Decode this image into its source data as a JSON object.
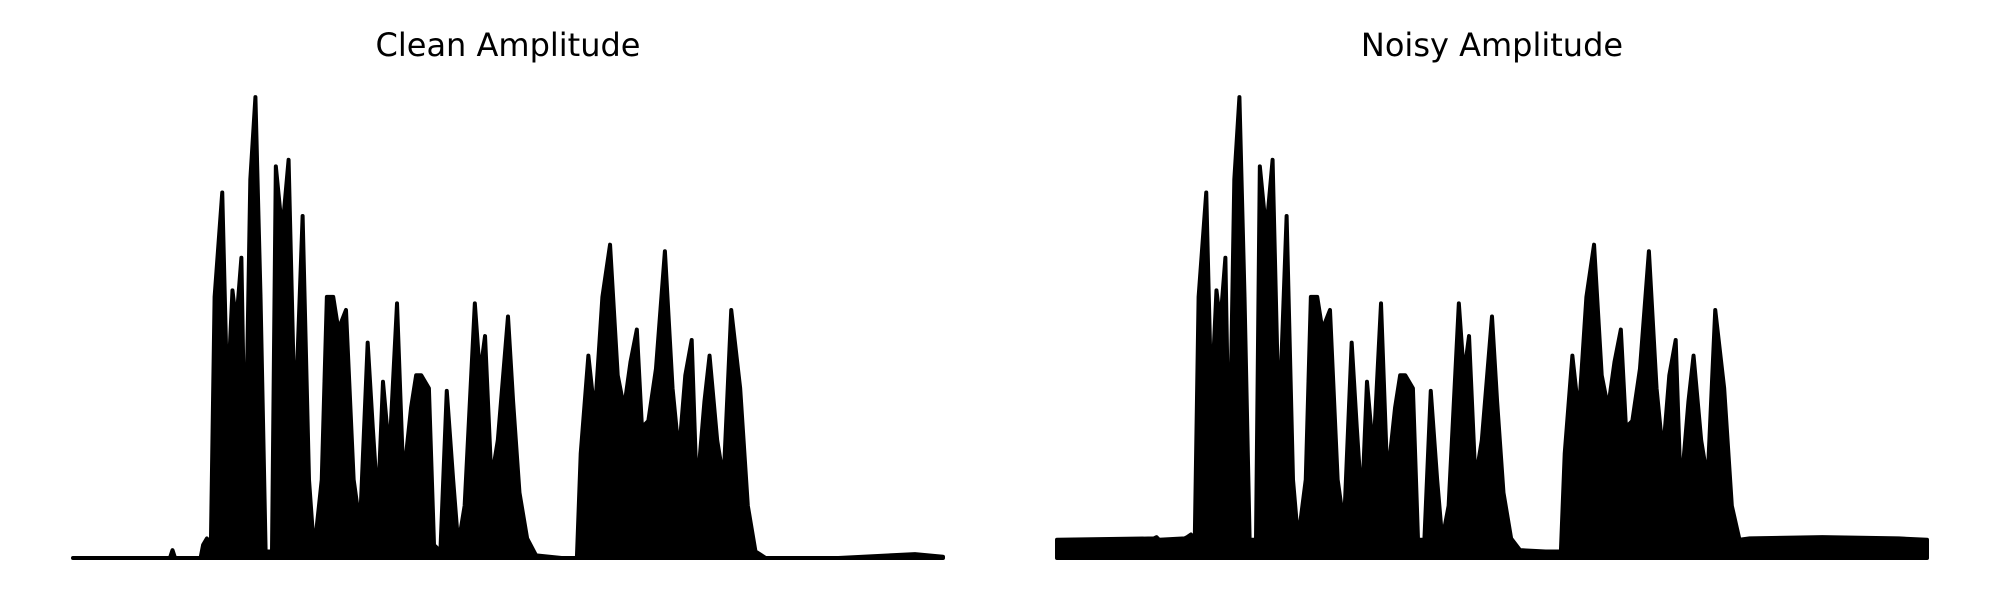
{
  "chart_data": [
    {
      "type": "area",
      "title": "Clean Amplitude",
      "color": "#000000",
      "x": [
        0,
        76,
        78,
        80,
        100,
        102,
        105,
        108,
        111,
        117,
        121,
        125,
        128,
        132,
        135,
        139,
        143,
        147,
        151,
        156,
        159,
        164,
        169,
        174,
        180,
        185,
        189,
        195,
        199,
        204,
        208,
        214,
        220,
        225,
        231,
        235,
        239,
        243,
        248,
        254,
        259,
        265,
        269,
        273,
        279,
        283,
        288,
        293,
        298,
        302,
        307,
        315,
        319,
        323,
        328,
        333,
        341,
        345,
        350,
        356,
        363,
        383,
        395,
        398,
        404,
        409,
        415,
        421,
        427,
        432,
        437,
        442,
        446,
        451,
        457,
        464,
        470,
        475,
        480,
        485,
        489,
        495,
        499,
        505,
        510,
        516,
        523,
        529,
        535,
        543,
        600,
        660,
        682
      ],
      "values": [
        0,
        0,
        6,
        0,
        0,
        10,
        15,
        5,
        200,
        280,
        120,
        205,
        180,
        230,
        60,
        290,
        353,
        200,
        5,
        5,
        300,
        250,
        305,
        100,
        262,
        60,
        5,
        60,
        200,
        200,
        175,
        190,
        60,
        25,
        165,
        100,
        40,
        135,
        80,
        195,
        60,
        115,
        140,
        140,
        130,
        10,
        5,
        128,
        60,
        10,
        40,
        195,
        140,
        170,
        60,
        90,
        185,
        120,
        50,
        15,
        2,
        0,
        0,
        80,
        155,
        110,
        200,
        240,
        140,
        115,
        150,
        175,
        100,
        105,
        145,
        235,
        130,
        80,
        140,
        167,
        50,
        120,
        155,
        90,
        60,
        190,
        130,
        40,
        5,
        0,
        0,
        3,
        1
      ],
      "xlim": [
        0,
        682
      ],
      "ylim": [
        0,
        360
      ]
    },
    {
      "type": "area",
      "title": "Noisy Amplitude",
      "color": "#000000",
      "x": [
        0,
        76,
        78,
        80,
        100,
        102,
        105,
        108,
        111,
        117,
        121,
        125,
        128,
        132,
        135,
        139,
        143,
        147,
        151,
        156,
        159,
        164,
        169,
        174,
        180,
        185,
        189,
        195,
        199,
        204,
        208,
        214,
        220,
        225,
        231,
        235,
        239,
        243,
        248,
        254,
        259,
        265,
        269,
        273,
        279,
        283,
        288,
        293,
        298,
        302,
        307,
        315,
        319,
        323,
        328,
        333,
        341,
        345,
        350,
        356,
        363,
        383,
        395,
        398,
        404,
        409,
        415,
        421,
        427,
        432,
        437,
        442,
        446,
        451,
        457,
        464,
        470,
        475,
        480,
        485,
        489,
        495,
        499,
        505,
        510,
        516,
        523,
        529,
        535,
        543,
        600,
        660,
        682
      ],
      "values": [
        14,
        15,
        16,
        14,
        15,
        16,
        18,
        14,
        200,
        280,
        120,
        205,
        180,
        230,
        60,
        290,
        353,
        200,
        14,
        14,
        300,
        250,
        305,
        100,
        262,
        60,
        14,
        60,
        200,
        200,
        175,
        190,
        60,
        25,
        165,
        100,
        40,
        135,
        80,
        195,
        60,
        115,
        140,
        140,
        130,
        14,
        14,
        128,
        60,
        14,
        40,
        195,
        140,
        170,
        60,
        90,
        185,
        120,
        50,
        15,
        6,
        5,
        5,
        80,
        155,
        110,
        200,
        240,
        140,
        115,
        150,
        175,
        100,
        105,
        145,
        235,
        130,
        80,
        140,
        167,
        50,
        120,
        155,
        90,
        60,
        190,
        130,
        40,
        14,
        15,
        16,
        15,
        14
      ],
      "xlim": [
        0,
        682
      ],
      "ylim": [
        0,
        360
      ]
    }
  ]
}
